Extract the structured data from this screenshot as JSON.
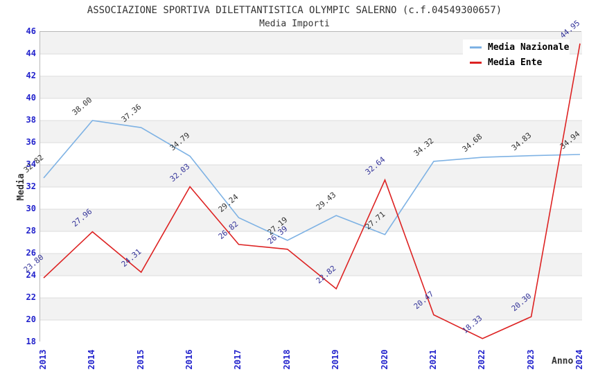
{
  "header": {
    "title": "ASSOCIAZIONE SPORTIVA DILETTANTISTICA OLYMPIC SALERNO (c.f.04549300657)",
    "subtitle": "Media Importi"
  },
  "chart_data": {
    "type": "line",
    "title": "ASSOCIAZIONE SPORTIVA DILETTANTISTICA OLYMPIC SALERNO (c.f.04549300657)",
    "subtitle": "Media Importi",
    "xlabel": "Anno",
    "ylabel": "Media",
    "categories": [
      "2013",
      "2014",
      "2015",
      "2016",
      "2017",
      "2018",
      "2019",
      "2020",
      "2021",
      "2022",
      "2023",
      "2024"
    ],
    "series": [
      {
        "name": "Media Nazionale",
        "color": "#7eb2e4",
        "label_color": "#333333",
        "values": [
          32.82,
          38.0,
          37.36,
          34.79,
          29.24,
          27.19,
          29.43,
          27.71,
          34.32,
          34.68,
          34.83,
          34.94
        ],
        "labels": [
          "32.82",
          "38.00",
          "37.36",
          "34.79",
          "29.24",
          "27.19",
          "29.43",
          "27.71",
          "34.32",
          "34.68",
          "34.83",
          "34.94"
        ]
      },
      {
        "name": "Media Ente",
        "color": "#dd2222",
        "label_color": "#333399",
        "values": [
          23.8,
          27.96,
          24.31,
          32.03,
          26.82,
          26.39,
          22.82,
          32.64,
          20.47,
          18.33,
          20.3,
          44.95
        ],
        "labels": [
          "23.80",
          "27.96",
          "24.31",
          "32.03",
          "26.82",
          "26.39",
          "22.82",
          "32.64",
          "20.47",
          "18.33",
          "20.30",
          "44.95"
        ]
      }
    ],
    "ylim": [
      18,
      46
    ],
    "ytick_step": 2,
    "yticks": [
      18,
      20,
      22,
      24,
      26,
      28,
      30,
      32,
      34,
      36,
      38,
      40,
      42,
      44,
      46
    ],
    "grid": true,
    "band_colors": [
      "#f2f2f2",
      "#ffffff"
    ],
    "gridline_color": "#dcdcdc",
    "tick_label_color": "#2222cc",
    "legend_position": "top-right"
  }
}
